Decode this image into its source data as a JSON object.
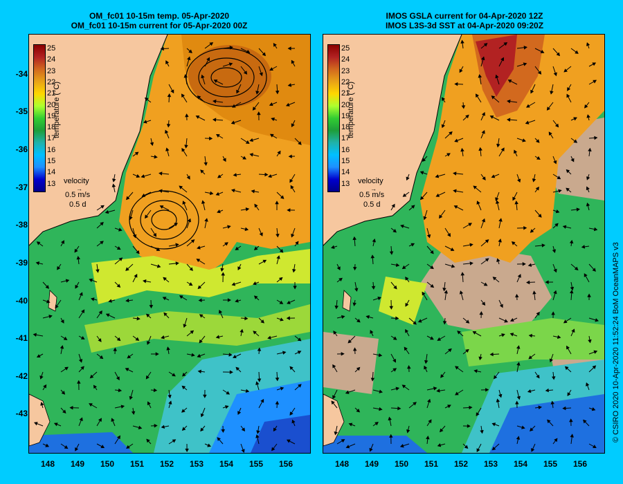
{
  "left_panel": {
    "title_line1": "OM_fc01 10-15m temp. 05-Apr-2020",
    "title_line2": "OM_fc01 10-15m current for 05-Apr-2020 00Z"
  },
  "right_panel": {
    "title_line1": "IMOS GSLA current for 04-Apr-2020 12Z",
    "title_line2": "IMOS L3S-3d SST at 04-Apr-2020 09:20Z"
  },
  "latitude_labels": [
    "-34",
    "-35",
    "-36",
    "-37",
    "-38",
    "-39",
    "-40",
    "-41",
    "-42",
    "-43"
  ],
  "longitude_labels": [
    "148",
    "149",
    "150",
    "151",
    "152",
    "153",
    "154",
    "155",
    "156"
  ],
  "colorbar": {
    "title": "temperature (°C)",
    "ticks": [
      "25",
      "24",
      "23",
      "22",
      "21",
      "20",
      "19",
      "18",
      "17",
      "16",
      "15",
      "14",
      "13"
    ],
    "colors": [
      "#8B0000",
      "#B22222",
      "#D2691E",
      "#E8A317",
      "#FFD700",
      "#ADFF2F",
      "#32CD32",
      "#1E9E3A",
      "#20B2AA",
      "#00BFFF",
      "#1E90FF",
      "#0000CD",
      "#00008B"
    ]
  },
  "velocity_legend": {
    "title": "velocity",
    "speed": "0.5 m/s",
    "time": "0.5 d"
  },
  "credit": "© CSIRO 2020   10-Apr-2020 11:52:24 BoM OceanMAPS v3",
  "colors": {
    "background": "#00CCFF",
    "land": "#F6C79F",
    "cloud_mask": "#C9A98E"
  }
}
